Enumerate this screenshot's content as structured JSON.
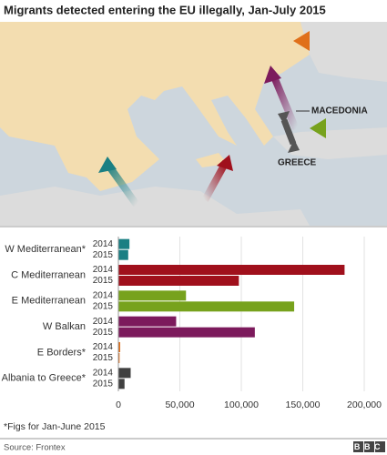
{
  "title": "Migrants detected entering the EU illegally, Jan-July 2015",
  "map_labels": [
    "MACEDONIA",
    "GREECE"
  ],
  "chart_data": {
    "type": "bar",
    "orientation": "horizontal",
    "categories": [
      "W Mediterranean*",
      "C Mediterranean",
      "E Mediterranean",
      "W Balkan",
      "E Borders*",
      "Albania to Greece*"
    ],
    "colors": [
      "#1a7f83",
      "#a0101c",
      "#77a21d",
      "#7c1a5c",
      "#e0701a",
      "#404040"
    ],
    "series": [
      {
        "name": "2014",
        "values": [
          9000,
          184000,
          55000,
          47000,
          1500,
          10000
        ]
      },
      {
        "name": "2015",
        "values": [
          8000,
          98000,
          143000,
          111000,
          1000,
          5000
        ]
      }
    ],
    "xlim": [
      0,
      200000
    ],
    "xticks": [
      0,
      {
        "value": 50000,
        "label": "50,000"
      },
      {
        "value": 100000,
        "label": "100,000"
      },
      {
        "value": 150000,
        "label": "150,000"
      },
      {
        "value": 200000,
        "label": "200,000"
      }
    ],
    "grid": true
  },
  "footnote": "*Figs for Jan-June 2015",
  "source": "Source: Frontex",
  "logo": "BBC"
}
